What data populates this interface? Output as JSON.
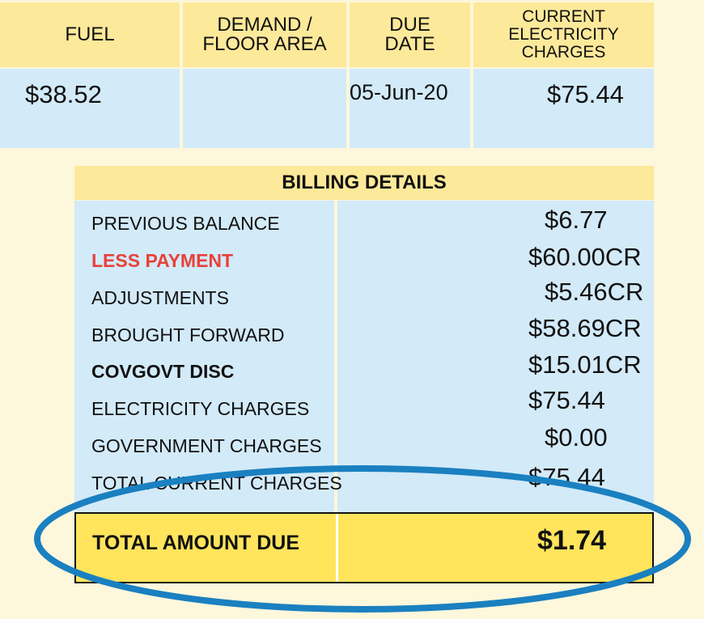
{
  "summary": {
    "headers": [
      "FUEL",
      "DEMAND / FLOOR AREA",
      "DUE DATE",
      "CURRENT ELECTRICITY CHARGES"
    ],
    "values": [
      "$38.52",
      "",
      "05-Jun-20",
      "$75.44"
    ]
  },
  "billing": {
    "title": "BILLING DETAILS",
    "rows": [
      {
        "label": "PREVIOUS BALANCE",
        "amount": "$6.77"
      },
      {
        "label": "LESS PAYMENT",
        "amount": "$60.00CR"
      },
      {
        "label": "ADJUSTMENTS",
        "amount": "$5.46CR"
      },
      {
        "label": "BROUGHT FORWARD",
        "amount": "$58.69CR"
      },
      {
        "label": "COVGOVT DISC",
        "amount": "$15.01CR"
      },
      {
        "label": "ELECTRICITY CHARGES",
        "amount": "$75.44"
      },
      {
        "label": "GOVERNMENT CHARGES",
        "amount": "$0.00"
      },
      {
        "label": "TOTAL CURRENT CHARGES",
        "amount": "$75.44"
      }
    ],
    "total": {
      "label": "TOTAL AMOUNT DUE",
      "amount": "$1.74"
    }
  },
  "colors": {
    "header": "#fde99a",
    "cell": "#d3eaf8",
    "highlight": "#ffe45c",
    "less_payment": "#e8413a",
    "annotation_circle": "#1a80c0"
  }
}
